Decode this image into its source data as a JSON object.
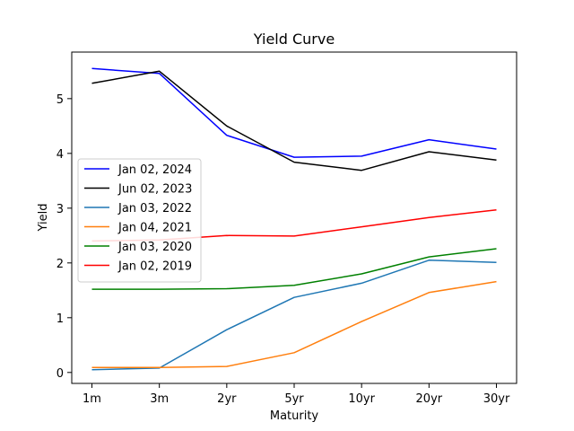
{
  "chart_data": {
    "type": "line",
    "title": "Yield Curve",
    "xlabel": "Maturity",
    "ylabel": "Yield",
    "categories": [
      "1m",
      "3m",
      "2yr",
      "5yr",
      "10yr",
      "20yr",
      "30yr"
    ],
    "ylim": [
      -0.2,
      5.85
    ],
    "yticks": [
      0,
      1,
      2,
      3,
      4,
      5
    ],
    "grid": false,
    "legend": "center-left",
    "series": [
      {
        "name": "Jan 02, 2024",
        "color": "#0000ff",
        "values": [
          5.55,
          5.46,
          4.33,
          3.93,
          3.95,
          4.25,
          4.08
        ]
      },
      {
        "name": "Jun 02, 2023",
        "color": "#000000",
        "values": [
          5.28,
          5.5,
          4.5,
          3.84,
          3.69,
          4.03,
          3.88
        ]
      },
      {
        "name": "Jan 03, 2022",
        "color": "#1f77b4",
        "values": [
          0.05,
          0.08,
          0.78,
          1.37,
          1.63,
          2.05,
          2.01
        ]
      },
      {
        "name": "Jan 04, 2021",
        "color": "#ff7f0e",
        "values": [
          0.09,
          0.09,
          0.11,
          0.36,
          0.93,
          1.46,
          1.66
        ]
      },
      {
        "name": "Jan 03, 2020",
        "color": "#008000",
        "values": [
          1.52,
          1.52,
          1.53,
          1.59,
          1.8,
          2.11,
          2.26
        ]
      },
      {
        "name": "Jan 02, 2019",
        "color": "#ff0000",
        "values": [
          2.4,
          2.42,
          2.5,
          2.49,
          2.66,
          2.83,
          2.97
        ]
      }
    ]
  }
}
